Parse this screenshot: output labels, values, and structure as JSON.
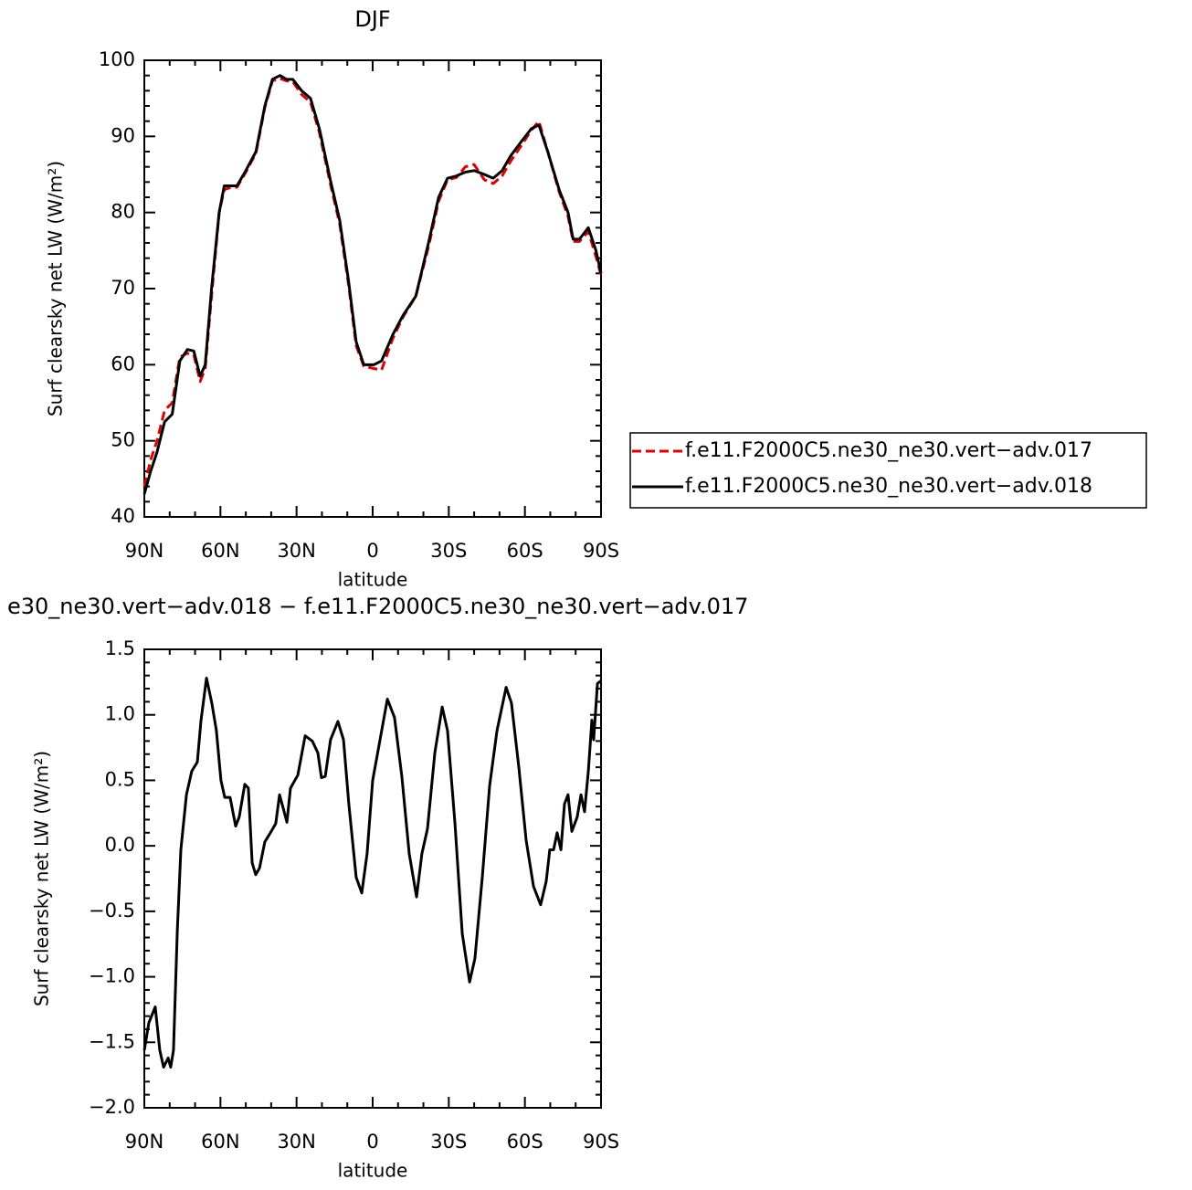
{
  "chart_data": [
    {
      "type": "line",
      "title": "DJF",
      "x_label": "latitude",
      "y_label": "Surf clearsky net LW (W/m²)",
      "x": [
        90,
        87.5,
        85,
        82,
        79,
        76,
        73,
        70.5,
        68,
        66,
        63.5,
        60.5,
        58.5,
        56,
        53.5,
        50,
        46,
        42.5,
        39.5,
        36.5,
        34,
        31.5,
        28,
        24.5,
        21,
        16.5,
        13,
        9.5,
        6.5,
        3.5,
        -0.5,
        -3.5,
        -8,
        -12,
        -17,
        -22,
        -26,
        -29.5,
        -33,
        -36.5,
        -40,
        -44,
        -47.5,
        -51,
        -54.5,
        -59,
        -62.5,
        -65.5,
        -69,
        -73.5,
        -77,
        -79,
        -81.5,
        -85,
        -88,
        -90
      ],
      "series": [
        {
          "name": "f.e11.F2000C5.ne30_ne30.vert−adv.017",
          "color": "#e00000",
          "dashed": true,
          "values": [
            44,
            47.5,
            50,
            54,
            55,
            61,
            61.5,
            61.3,
            57.8,
            59.5,
            69,
            80,
            83,
            83.3,
            83.3,
            85.3,
            87.8,
            93.8,
            97.3,
            97.6,
            97.3,
            97.2,
            95.5,
            94.5,
            90.5,
            83.5,
            78.5,
            70.5,
            62.5,
            59.8,
            59.5,
            59.3,
            63.5,
            66.3,
            69,
            75.5,
            81.5,
            84.3,
            84.6,
            86,
            86.3,
            84.3,
            83.8,
            84.8,
            86.8,
            89,
            90.8,
            92,
            88,
            82.7,
            79.5,
            76.2,
            76.2,
            77.5,
            74.2,
            71.8
          ]
        },
        {
          "name": "f.e11.F2000C5.ne30_ne30.vert−adv.018",
          "color": "#000000",
          "dashed": false,
          "values": [
            43,
            46,
            48.5,
            52.5,
            53.5,
            60.5,
            62,
            61.8,
            58.5,
            60,
            70,
            80,
            83.5,
            83.5,
            83.5,
            85.5,
            88,
            94,
            97.5,
            98,
            97.5,
            97.5,
            96,
            95,
            91,
            84,
            79,
            71,
            63,
            60,
            60,
            60.5,
            64,
            66.5,
            69,
            76,
            82,
            84.5,
            84.8,
            85.3,
            85.5,
            85,
            84.5,
            85.5,
            87.5,
            89.5,
            91,
            91.5,
            88,
            83,
            80,
            76.5,
            76.5,
            78,
            75,
            72
          ]
        }
      ],
      "xlim": [
        90,
        -90
      ],
      "xticks": [
        {
          "value": 90,
          "label": "90N"
        },
        {
          "value": 60,
          "label": "60N"
        },
        {
          "value": 30,
          "label": "30N"
        },
        0,
        {
          "value": -30,
          "label": "30S"
        },
        {
          "value": -60,
          "label": "60S"
        },
        {
          "value": -90,
          "label": "90S"
        }
      ],
      "ylim": [
        40,
        100
      ],
      "yticks": [
        40,
        50,
        60,
        70,
        80,
        90,
        100
      ],
      "legend": "right"
    },
    {
      "type": "line",
      "title": "e30_ne30.vert−adv.018 − f.e11.F2000C5.ne30_ne30.vert−adv.017",
      "x_label": "latitude",
      "y_label": "Surf clearsky net LW (W/m²)",
      "x": [
        90,
        88.2,
        85.7,
        83.9,
        82.4,
        80.6,
        79.6,
        78.5,
        77,
        75.6,
        73.4,
        71.3,
        69.1,
        67.7,
        65.5,
        63.4,
        61.6,
        59.8,
        58.3,
        56.2,
        54,
        52.6,
        50.4,
        49,
        47.5,
        46.1,
        44.6,
        42.5,
        40.3,
        38.2,
        36.7,
        35.3,
        33.8,
        32.4,
        29.5,
        26.6,
        23.8,
        21.6,
        20.2,
        18.7,
        16.6,
        13.7,
        11.5,
        9.4,
        6.5,
        4.3,
        2.2,
        0,
        -2.9,
        -5.8,
        -8.6,
        -11.5,
        -14.4,
        -17.3,
        -19.4,
        -21.6,
        -24.5,
        -27.4,
        -29.5,
        -32.4,
        -35.3,
        -38.2,
        -40.3,
        -43.2,
        -46.1,
        -49,
        -52.6,
        -54.7,
        -57.6,
        -60.5,
        -63.4,
        -66.2,
        -68.4,
        -69.8,
        -71.3,
        -72.7,
        -74.2,
        -75.6,
        -77,
        -78.5,
        -80.6,
        -82.1,
        -83.5,
        -85,
        -86.4,
        -87.1,
        -88.6,
        -90
      ],
      "series": [
        {
          "color": "#000000",
          "dashed": false,
          "values": [
            -1.56,
            -1.35,
            -1.23,
            -1.56,
            -1.69,
            -1.62,
            -1.69,
            -1.56,
            -0.65,
            -0.03,
            0.39,
            0.57,
            0.64,
            0.95,
            1.28,
            1.09,
            0.88,
            0.5,
            0.37,
            0.37,
            0.15,
            0.22,
            0.47,
            0.44,
            -0.13,
            -0.22,
            -0.17,
            0.03,
            0.1,
            0.17,
            0.39,
            0.29,
            0.18,
            0.44,
            0.54,
            0.84,
            0.8,
            0.71,
            0.52,
            0.53,
            0.81,
            0.95,
            0.81,
            0.32,
            -0.24,
            -0.36,
            -0.06,
            0.5,
            0.81,
            1.12,
            0.98,
            0.53,
            -0.06,
            -0.39,
            -0.06,
            0.13,
            0.71,
            1.06,
            0.88,
            0.18,
            -0.67,
            -1.04,
            -0.86,
            -0.24,
            0.46,
            0.88,
            1.21,
            1.09,
            0.6,
            0.04,
            -0.31,
            -0.45,
            -0.27,
            -0.03,
            -0.03,
            0.1,
            -0.03,
            0.32,
            0.39,
            0.11,
            0.22,
            0.39,
            0.26,
            0.57,
            0.96,
            0.81,
            1.24,
            1.26
          ]
        }
      ],
      "xlim": [
        90,
        -90
      ],
      "xticks": [
        {
          "value": 90,
          "label": "90N"
        },
        {
          "value": 60,
          "label": "60N"
        },
        {
          "value": 30,
          "label": "30N"
        },
        0,
        {
          "value": -30,
          "label": "30S"
        },
        {
          "value": -60,
          "label": "60S"
        },
        {
          "value": -90,
          "label": "90S"
        }
      ],
      "ylim": [
        -2,
        1.5
      ],
      "yticks": [
        {
          "value": -2,
          "label": "−2.0"
        },
        {
          "value": -1.5,
          "label": "−1.5"
        },
        {
          "value": -1,
          "label": "−1.0"
        },
        {
          "value": -0.5,
          "label": "−0.5"
        },
        {
          "value": 0,
          "label": "0.0"
        },
        0.5,
        {
          "value": 1,
          "label": "1.0"
        },
        1.5
      ]
    }
  ]
}
